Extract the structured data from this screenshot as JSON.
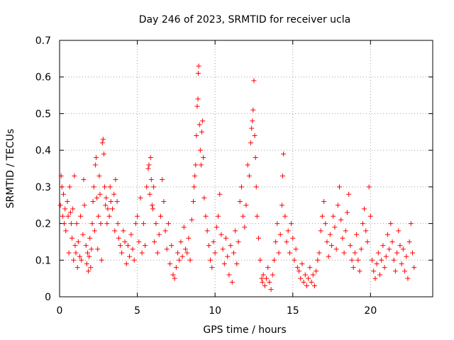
{
  "chart_data": {
    "type": "scatter",
    "title": "Day 246 of 2023, SRMTID for receiver ucla",
    "xlabel": "GPS time / hours",
    "ylabel": "SRMTID / TECUs",
    "xlim": [
      0,
      24
    ],
    "ylim": [
      0,
      0.7
    ],
    "xticks": [
      0,
      5,
      10,
      15,
      20
    ],
    "yticks": [
      0,
      0.1,
      0.2,
      0.3,
      0.4,
      0.5,
      0.6,
      0.7
    ],
    "grid": true,
    "marker": "+",
    "color": "#ff0000",
    "series": [
      {
        "name": "SRMTID",
        "points": [
          [
            0.05,
            0.25
          ],
          [
            0.1,
            0.33
          ],
          [
            0.15,
            0.3
          ],
          [
            0.2,
            0.22
          ],
          [
            0.25,
            0.28
          ],
          [
            0.3,
            0.2
          ],
          [
            0.35,
            0.24
          ],
          [
            0.4,
            0.18
          ],
          [
            0.5,
            0.26
          ],
          [
            0.55,
            0.22
          ],
          [
            0.6,
            0.12
          ],
          [
            0.65,
            0.3
          ],
          [
            0.7,
            0.23
          ],
          [
            0.75,
            0.2
          ],
          [
            0.8,
            0.16
          ],
          [
            0.85,
            0.24
          ],
          [
            0.9,
            0.1
          ],
          [
            0.95,
            0.33
          ],
          [
            1.0,
            0.14
          ],
          [
            1.05,
            0.12
          ],
          [
            1.1,
            0.2
          ],
          [
            1.15,
            0.08
          ],
          [
            1.2,
            0.15
          ],
          [
            1.3,
            0.11
          ],
          [
            1.35,
            0.22
          ],
          [
            1.4,
            0.1
          ],
          [
            1.5,
            0.17
          ],
          [
            1.55,
            0.32
          ],
          [
            1.6,
            0.25
          ],
          [
            1.7,
            0.14
          ],
          [
            1.75,
            0.09
          ],
          [
            1.8,
            0.12
          ],
          [
            1.85,
            0.07
          ],
          [
            1.9,
            0.11
          ],
          [
            1.95,
            0.16
          ],
          [
            2.0,
            0.08
          ],
          [
            2.05,
            0.13
          ],
          [
            2.1,
            0.2
          ],
          [
            2.15,
            0.26
          ],
          [
            2.2,
            0.3
          ],
          [
            2.25,
            0.18
          ],
          [
            2.3,
            0.36
          ],
          [
            2.35,
            0.38
          ],
          [
            2.4,
            0.27
          ],
          [
            2.45,
            0.13
          ],
          [
            2.5,
            0.22
          ],
          [
            2.55,
            0.33
          ],
          [
            2.6,
            0.28
          ],
          [
            2.65,
            0.2
          ],
          [
            2.7,
            0.1
          ],
          [
            2.75,
            0.42
          ],
          [
            2.8,
            0.43
          ],
          [
            2.85,
            0.39
          ],
          [
            2.9,
            0.3
          ],
          [
            2.95,
            0.25
          ],
          [
            3.0,
            0.27
          ],
          [
            3.05,
            0.2
          ],
          [
            3.1,
            0.24
          ],
          [
            3.2,
            0.22
          ],
          [
            3.25,
            0.3
          ],
          [
            3.3,
            0.26
          ],
          [
            3.4,
            0.24
          ],
          [
            3.5,
            0.28
          ],
          [
            3.55,
            0.18
          ],
          [
            3.6,
            0.32
          ],
          [
            3.7,
            0.26
          ],
          [
            3.75,
            0.2
          ],
          [
            3.8,
            0.16
          ],
          [
            3.9,
            0.14
          ],
          [
            4.0,
            0.12
          ],
          [
            4.1,
            0.18
          ],
          [
            4.2,
            0.15
          ],
          [
            4.3,
            0.09
          ],
          [
            4.4,
            0.14
          ],
          [
            4.5,
            0.11
          ],
          [
            4.6,
            0.17
          ],
          [
            4.7,
            0.13
          ],
          [
            4.8,
            0.1
          ],
          [
            4.9,
            0.2
          ],
          [
            5.0,
            0.22
          ],
          [
            5.1,
            0.15
          ],
          [
            5.2,
            0.27
          ],
          [
            5.3,
            0.12
          ],
          [
            5.4,
            0.2
          ],
          [
            5.5,
            0.14
          ],
          [
            5.6,
            0.3
          ],
          [
            5.7,
            0.35
          ],
          [
            5.75,
            0.36
          ],
          [
            5.8,
            0.28
          ],
          [
            5.85,
            0.38
          ],
          [
            5.9,
            0.32
          ],
          [
            5.95,
            0.25
          ],
          [
            6.0,
            0.24
          ],
          [
            6.05,
            0.3
          ],
          [
            6.1,
            0.15
          ],
          [
            6.2,
            0.2
          ],
          [
            6.3,
            0.12
          ],
          [
            6.4,
            0.17
          ],
          [
            6.5,
            0.22
          ],
          [
            6.6,
            0.32
          ],
          [
            6.7,
            0.26
          ],
          [
            6.8,
            0.18
          ],
          [
            6.9,
            0.13
          ],
          [
            7.0,
            0.2
          ],
          [
            7.1,
            0.09
          ],
          [
            7.2,
            0.14
          ],
          [
            7.3,
            0.06
          ],
          [
            7.4,
            0.05
          ],
          [
            7.5,
            0.08
          ],
          [
            7.6,
            0.12
          ],
          [
            7.7,
            0.1
          ],
          [
            7.8,
            0.15
          ],
          [
            7.9,
            0.11
          ],
          [
            8.0,
            0.19
          ],
          [
            8.1,
            0.13
          ],
          [
            8.2,
            0.12
          ],
          [
            8.3,
            0.16
          ],
          [
            8.4,
            0.1
          ],
          [
            8.5,
            0.21
          ],
          [
            8.6,
            0.26
          ],
          [
            8.65,
            0.3
          ],
          [
            8.7,
            0.33
          ],
          [
            8.75,
            0.36
          ],
          [
            8.8,
            0.44
          ],
          [
            8.85,
            0.52
          ],
          [
            8.9,
            0.54
          ],
          [
            8.92,
            0.61
          ],
          [
            8.95,
            0.63
          ],
          [
            9.0,
            0.47
          ],
          [
            9.05,
            0.4
          ],
          [
            9.1,
            0.36
          ],
          [
            9.15,
            0.45
          ],
          [
            9.2,
            0.48
          ],
          [
            9.25,
            0.38
          ],
          [
            9.3,
            0.27
          ],
          [
            9.4,
            0.22
          ],
          [
            9.5,
            0.18
          ],
          [
            9.6,
            0.14
          ],
          [
            9.7,
            0.1
          ],
          [
            9.8,
            0.08
          ],
          [
            9.9,
            0.15
          ],
          [
            10.0,
            0.12
          ],
          [
            10.1,
            0.19
          ],
          [
            10.2,
            0.22
          ],
          [
            10.3,
            0.28
          ],
          [
            10.4,
            0.17
          ],
          [
            10.5,
            0.13
          ],
          [
            10.6,
            0.09
          ],
          [
            10.7,
            0.16
          ],
          [
            10.8,
            0.11
          ],
          [
            10.9,
            0.06
          ],
          [
            11.0,
            0.14
          ],
          [
            11.1,
            0.04
          ],
          [
            11.2,
            0.12
          ],
          [
            11.3,
            0.18
          ],
          [
            11.4,
            0.09
          ],
          [
            11.5,
            0.15
          ],
          [
            11.6,
            0.26
          ],
          [
            11.7,
            0.3
          ],
          [
            11.8,
            0.22
          ],
          [
            11.9,
            0.19
          ],
          [
            12.0,
            0.25
          ],
          [
            12.1,
            0.36
          ],
          [
            12.2,
            0.33
          ],
          [
            12.3,
            0.42
          ],
          [
            12.35,
            0.46
          ],
          [
            12.4,
            0.48
          ],
          [
            12.45,
            0.51
          ],
          [
            12.5,
            0.59
          ],
          [
            12.55,
            0.44
          ],
          [
            12.6,
            0.38
          ],
          [
            12.65,
            0.3
          ],
          [
            12.7,
            0.22
          ],
          [
            12.8,
            0.16
          ],
          [
            12.9,
            0.1
          ],
          [
            13.0,
            0.05
          ],
          [
            13.05,
            0.04
          ],
          [
            13.1,
            0.06
          ],
          [
            13.2,
            0.03
          ],
          [
            13.3,
            0.05
          ],
          [
            13.4,
            0.08
          ],
          [
            13.5,
            0.04
          ],
          [
            13.6,
            0.02
          ],
          [
            13.7,
            0.06
          ],
          [
            13.8,
            0.1
          ],
          [
            13.9,
            0.15
          ],
          [
            14.0,
            0.2
          ],
          [
            14.1,
            0.12
          ],
          [
            14.2,
            0.17
          ],
          [
            14.3,
            0.25
          ],
          [
            14.35,
            0.33
          ],
          [
            14.4,
            0.39
          ],
          [
            14.5,
            0.22
          ],
          [
            14.6,
            0.15
          ],
          [
            14.7,
            0.18
          ],
          [
            14.8,
            0.12
          ],
          [
            14.9,
            0.2
          ],
          [
            15.0,
            0.16
          ],
          [
            15.1,
            0.1
          ],
          [
            15.2,
            0.13
          ],
          [
            15.3,
            0.08
          ],
          [
            15.4,
            0.07
          ],
          [
            15.5,
            0.05
          ],
          [
            15.6,
            0.09
          ],
          [
            15.7,
            0.04
          ],
          [
            15.8,
            0.06
          ],
          [
            15.9,
            0.03
          ],
          [
            16.0,
            0.05
          ],
          [
            16.1,
            0.08
          ],
          [
            16.2,
            0.04
          ],
          [
            16.3,
            0.06
          ],
          [
            16.4,
            0.03
          ],
          [
            16.5,
            0.07
          ],
          [
            16.6,
            0.1
          ],
          [
            16.7,
            0.12
          ],
          [
            16.8,
            0.18
          ],
          [
            16.9,
            0.22
          ],
          [
            17.0,
            0.26
          ],
          [
            17.1,
            0.2
          ],
          [
            17.2,
            0.15
          ],
          [
            17.3,
            0.11
          ],
          [
            17.4,
            0.17
          ],
          [
            17.5,
            0.14
          ],
          [
            17.6,
            0.22
          ],
          [
            17.7,
            0.19
          ],
          [
            17.8,
            0.13
          ],
          [
            17.9,
            0.25
          ],
          [
            18.0,
            0.3
          ],
          [
            18.1,
            0.21
          ],
          [
            18.2,
            0.16
          ],
          [
            18.3,
            0.12
          ],
          [
            18.4,
            0.18
          ],
          [
            18.5,
            0.23
          ],
          [
            18.6,
            0.28
          ],
          [
            18.7,
            0.14
          ],
          [
            18.8,
            0.1
          ],
          [
            18.9,
            0.08
          ],
          [
            19.0,
            0.12
          ],
          [
            19.1,
            0.17
          ],
          [
            19.2,
            0.1
          ],
          [
            19.3,
            0.07
          ],
          [
            19.4,
            0.13
          ],
          [
            19.5,
            0.2
          ],
          [
            19.6,
            0.24
          ],
          [
            19.7,
            0.18
          ],
          [
            19.8,
            0.15
          ],
          [
            19.9,
            0.3
          ],
          [
            20.0,
            0.22
          ],
          [
            20.1,
            0.1
          ],
          [
            20.2,
            0.07
          ],
          [
            20.3,
            0.05
          ],
          [
            20.4,
            0.09
          ],
          [
            20.5,
            0.12
          ],
          [
            20.6,
            0.06
          ],
          [
            20.7,
            0.1
          ],
          [
            20.8,
            0.14
          ],
          [
            20.9,
            0.08
          ],
          [
            21.0,
            0.11
          ],
          [
            21.1,
            0.17
          ],
          [
            21.2,
            0.13
          ],
          [
            21.3,
            0.2
          ],
          [
            21.4,
            0.15
          ],
          [
            21.5,
            0.1
          ],
          [
            21.6,
            0.07
          ],
          [
            21.7,
            0.12
          ],
          [
            21.8,
            0.18
          ],
          [
            21.9,
            0.14
          ],
          [
            22.0,
            0.09
          ],
          [
            22.1,
            0.13
          ],
          [
            22.2,
            0.07
          ],
          [
            22.3,
            0.11
          ],
          [
            22.4,
            0.05
          ],
          [
            22.5,
            0.15
          ],
          [
            22.6,
            0.2
          ],
          [
            22.7,
            0.12
          ],
          [
            22.8,
            0.08
          ]
        ]
      }
    ]
  }
}
